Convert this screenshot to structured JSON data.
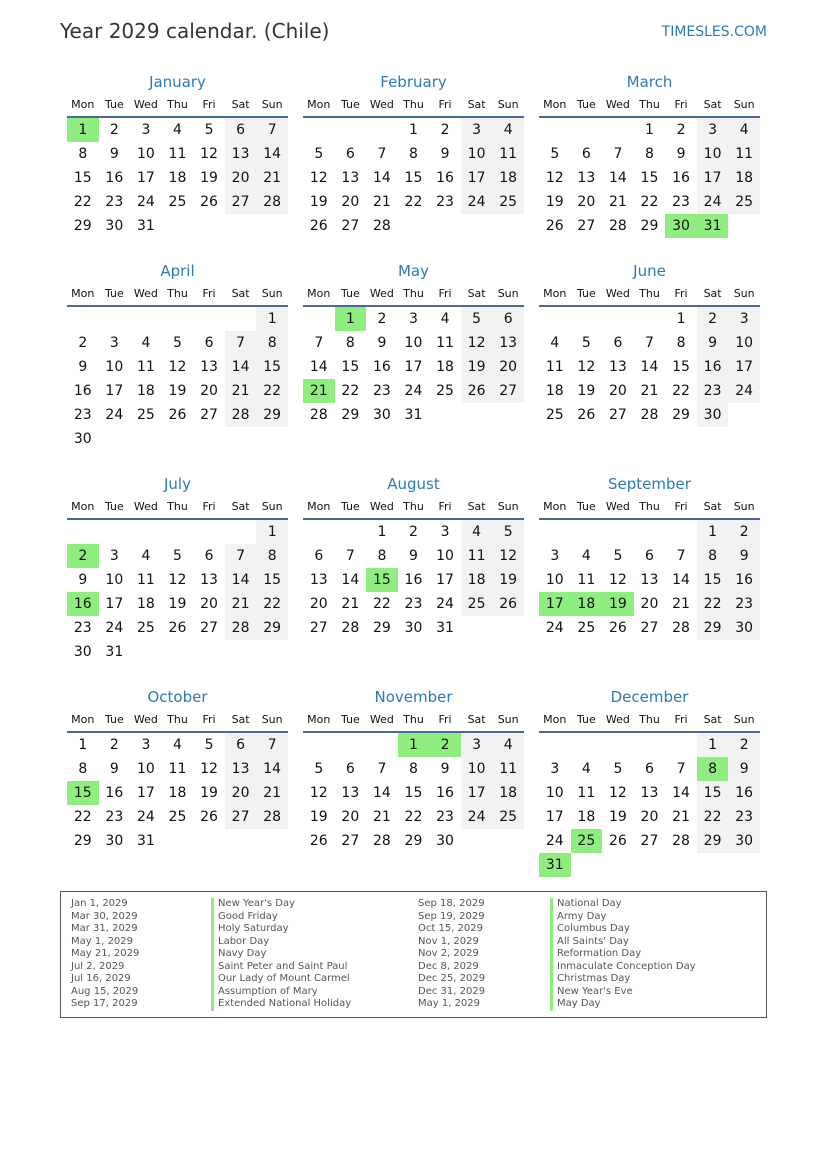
{
  "header": {
    "title": "Year 2029 calendar. (Chile)",
    "brand": "TIMESLES.COM"
  },
  "year": 2029,
  "weekdays": [
    "Mon",
    "Tue",
    "Wed",
    "Thu",
    "Fri",
    "Sat",
    "Sun"
  ],
  "colors": {
    "accent": "#2a7ab8",
    "holiday": "#90ee80",
    "weekend": "#f2f2f2"
  },
  "months": [
    {
      "name": "January",
      "holidays": [
        1
      ]
    },
    {
      "name": "February",
      "holidays": []
    },
    {
      "name": "March",
      "holidays": [
        30,
        31
      ]
    },
    {
      "name": "April",
      "holidays": []
    },
    {
      "name": "May",
      "holidays": [
        1,
        21
      ]
    },
    {
      "name": "June",
      "holidays": []
    },
    {
      "name": "July",
      "holidays": [
        2,
        16
      ]
    },
    {
      "name": "August",
      "holidays": [
        15
      ]
    },
    {
      "name": "September",
      "holidays": [
        17,
        18,
        19
      ]
    },
    {
      "name": "October",
      "holidays": [
        15
      ]
    },
    {
      "name": "November",
      "holidays": [
        1,
        2
      ]
    },
    {
      "name": "December",
      "holidays": [
        8,
        25,
        31
      ]
    }
  ],
  "holiday_list": [
    {
      "date": "Jan 1, 2029",
      "name": "New Year's Day"
    },
    {
      "date": "Mar 30, 2029",
      "name": "Good Friday"
    },
    {
      "date": "Mar 31, 2029",
      "name": "Holy Saturday"
    },
    {
      "date": "May 1, 2029",
      "name": "Labor Day"
    },
    {
      "date": "May 21, 2029",
      "name": "Navy Day"
    },
    {
      "date": "Jul 2, 2029",
      "name": "Saint Peter and Saint Paul"
    },
    {
      "date": "Jul 16, 2029",
      "name": "Our Lady of Mount Carmel"
    },
    {
      "date": "Aug 15, 2029",
      "name": "Assumption of Mary"
    },
    {
      "date": "Sep 17, 2029",
      "name": "Extended National Holiday"
    },
    {
      "date": "Sep 18, 2029",
      "name": "National Day"
    },
    {
      "date": "Sep 19, 2029",
      "name": "Army Day"
    },
    {
      "date": "Oct 15, 2029",
      "name": "Columbus Day"
    },
    {
      "date": "Nov 1, 2029",
      "name": "All Saints' Day"
    },
    {
      "date": "Nov 2, 2029",
      "name": "Reformation Day"
    },
    {
      "date": "Dec 8, 2029",
      "name": "Inmaculate Conception Day"
    },
    {
      "date": "Dec 25, 2029",
      "name": "Christmas Day"
    },
    {
      "date": "Dec 31, 2029",
      "name": "New Year's Eve"
    },
    {
      "date": "May 1, 2029",
      "name": "May Day"
    }
  ]
}
